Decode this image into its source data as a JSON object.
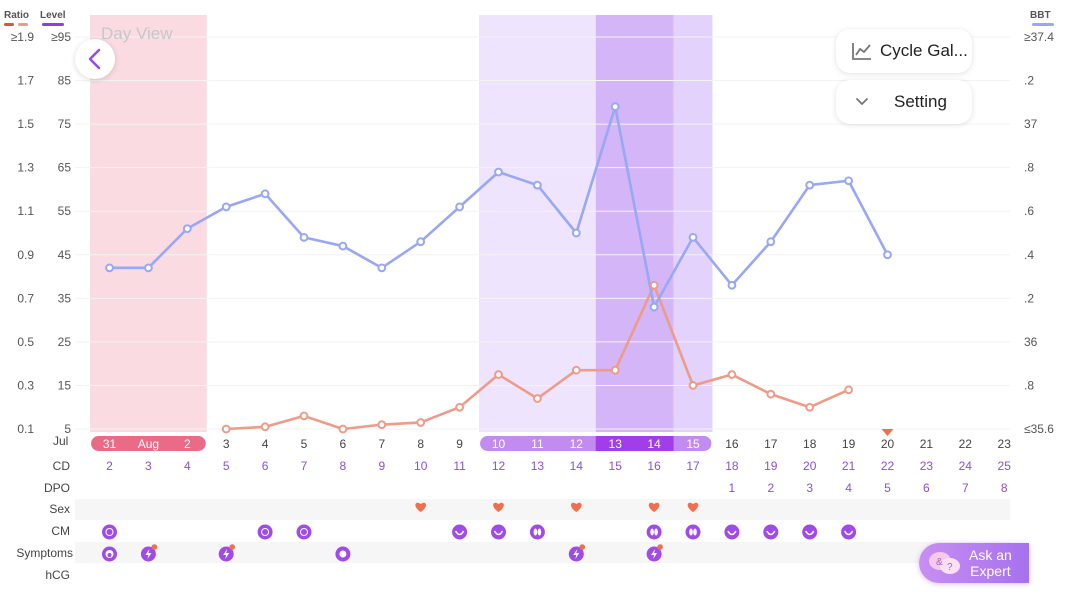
{
  "axes": {
    "ratio_label": "Ratio",
    "level_label": "Level",
    "bbt_label": "BBT",
    "ratio_ticks": [
      "≥1.9",
      "1.7",
      "1.5",
      "1.3",
      "1.1",
      "0.9",
      "0.7",
      "0.5",
      "0.3",
      "0.1"
    ],
    "level_ticks": [
      "≥95",
      "85",
      "75",
      "65",
      "55",
      "45",
      "35",
      "25",
      "15",
      "5"
    ],
    "bbt_ticks": [
      "≥37.4",
      ".2",
      "37",
      ".8",
      ".6",
      ".4",
      ".2",
      "36",
      ".8",
      "≤35.6"
    ]
  },
  "header": {
    "day_view": "Day View"
  },
  "buttons": {
    "cycle_gallery": "Cycle Gal...",
    "setting": "Setting",
    "ask_expert_line1": "Ask an",
    "ask_expert_line2": "Expert"
  },
  "colors": {
    "ratio": "#ee9b88",
    "level": "#98a8f4",
    "period": "#f9dbe1",
    "fertile": "#eee4fd",
    "peak": "#d3b5f8",
    "late": "#e3d2fb",
    "accent": "#a04be8",
    "heart": "#f0704e"
  },
  "dates": {
    "month_label": "Jul",
    "month_text": "Aug",
    "labels": [
      "31",
      "Aug",
      "2",
      "3",
      "4",
      "5",
      "6",
      "7",
      "8",
      "9",
      "10",
      "11",
      "12",
      "13",
      "14",
      "15",
      "16",
      "17",
      "18",
      "19",
      "20",
      "21",
      "22",
      "23"
    ],
    "cd": [
      "2",
      "3",
      "4",
      "5",
      "6",
      "7",
      "8",
      "9",
      "10",
      "11",
      "12",
      "13",
      "14",
      "15",
      "16",
      "17",
      "18",
      "19",
      "20",
      "21",
      "22",
      "23",
      "24",
      "25"
    ],
    "dpo": [
      "",
      "",
      "",
      "",
      "",
      "",
      "",
      "",
      "",
      "",
      "",
      "",
      "",
      "",
      "",
      "",
      "1",
      "2",
      "3",
      "4",
      "5",
      "6",
      "7",
      "8"
    ]
  },
  "rows": {
    "cd": "CD",
    "dpo": "DPO",
    "sex": "Sex",
    "cm": "CM",
    "symptoms": "Symptoms",
    "hcg": "hCG"
  },
  "events": {
    "sex_days": [
      "8",
      "10",
      "12",
      "14",
      "15"
    ],
    "cm": [
      {
        "day": "31",
        "icon": "dot-circle-icon"
      },
      {
        "day": "4",
        "icon": "dot-circle-icon"
      },
      {
        "day": "5",
        "icon": "dot-circle-icon"
      },
      {
        "day": "9",
        "icon": "egg-white-icon"
      },
      {
        "day": "10",
        "icon": "egg-white-icon"
      },
      {
        "day": "11",
        "icon": "butterfly-icon"
      },
      {
        "day": "14",
        "icon": "butterfly-icon"
      },
      {
        "day": "15",
        "icon": "butterfly-icon"
      },
      {
        "day": "16",
        "icon": "egg-white-icon"
      },
      {
        "day": "17",
        "icon": "egg-white-icon"
      },
      {
        "day": "18",
        "icon": "egg-white-icon"
      },
      {
        "day": "19",
        "icon": "egg-white-icon"
      }
    ],
    "symptoms": [
      {
        "day": "31",
        "icon": "face-icon",
        "badge": false
      },
      {
        "day": "Aug",
        "icon": "bolt-icon",
        "badge": true
      },
      {
        "day": "3",
        "icon": "bolt-icon",
        "badge": true
      },
      {
        "day": "6",
        "icon": "blob-icon",
        "badge": false
      },
      {
        "day": "12",
        "icon": "bolt-icon",
        "badge": true
      },
      {
        "day": "14",
        "icon": "bolt-icon",
        "badge": true
      }
    ]
  },
  "chart_data": {
    "type": "line",
    "x": [
      "Jul 31",
      "Aug 1",
      "Aug 2",
      "Aug 3",
      "Aug 4",
      "Aug 5",
      "Aug 6",
      "Aug 7",
      "Aug 8",
      "Aug 9",
      "Aug 10",
      "Aug 11",
      "Aug 12",
      "Aug 13",
      "Aug 14",
      "Aug 15",
      "Aug 16",
      "Aug 17",
      "Aug 18",
      "Aug 19",
      "Aug 20",
      "Aug 21",
      "Aug 22",
      "Aug 23"
    ],
    "series": [
      {
        "name": "Level",
        "values": [
          42,
          42,
          51,
          56,
          59,
          49,
          47,
          42,
          48,
          56,
          64,
          61,
          50,
          79,
          33,
          49,
          38,
          48,
          61,
          62,
          45,
          null,
          null,
          null
        ]
      },
      {
        "name": "Ratio",
        "values": [
          null,
          null,
          null,
          0.1,
          0.11,
          0.16,
          0.1,
          0.12,
          0.13,
          0.2,
          0.35,
          0.24,
          0.37,
          0.37,
          0.76,
          0.3,
          0.35,
          0.26,
          0.2,
          0.28,
          null,
          null,
          null,
          null
        ]
      }
    ],
    "bbt_indicator_day": "Aug 20",
    "ylim_level": [
      5,
      95
    ],
    "ylim_ratio": [
      0.1,
      1.9
    ]
  }
}
